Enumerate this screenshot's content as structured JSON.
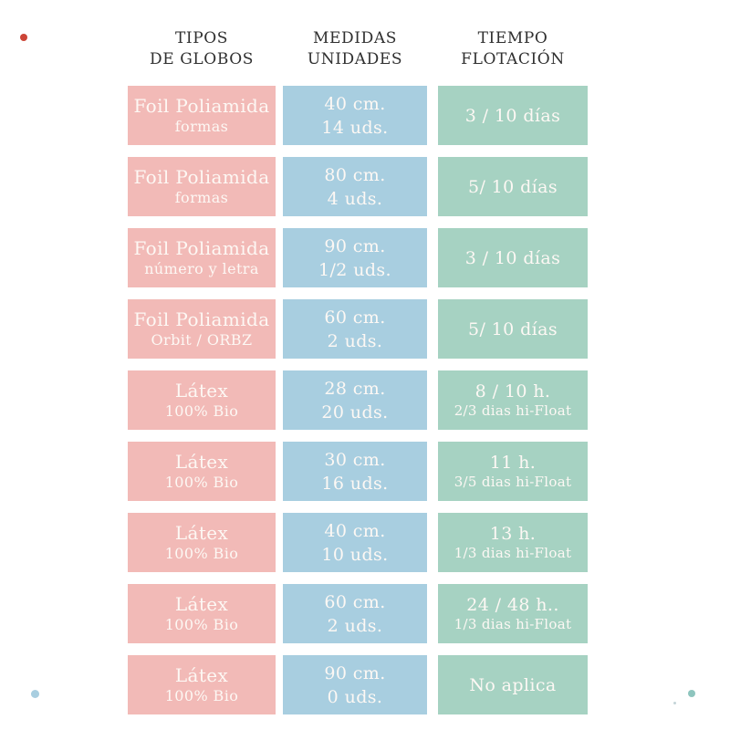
{
  "title": "Tabla de tipos de globos, medidas y tiempo de flotación",
  "colors": {
    "pink": "#f2bab7",
    "blue": "#a8cee0",
    "green": "#a6d2c2",
    "ink": "#2f2f2f",
    "celltext": "#fdf8f4",
    "dotred": "#cc4437",
    "dotblue": "#a8cee0",
    "dotteal": "#8ec5be",
    "dotspeck": "#c4d4d8"
  },
  "decorations": [
    {
      "name": "red-dot-top-left"
    },
    {
      "name": "blue-dot-bottom-left"
    },
    {
      "name": "teal-dot-bottom-right"
    },
    {
      "name": "speck-bottom-right"
    }
  ],
  "chart_data": {
    "type": "table",
    "columns": [
      {
        "header_line1": "TIPOS",
        "header_line2": "DE GLOBOS"
      },
      {
        "header_line1": "MEDIDAS",
        "header_line2": "UNIDADES"
      },
      {
        "header_line1": "TIEMPO",
        "header_line2": "FLOTACIÓN"
      }
    ],
    "rows": [
      {
        "tipo": "Foil Poliamida",
        "tipo_sub": "formas",
        "medida": "40 cm.",
        "unidades": "14 uds.",
        "tiempo": "3 / 10 días",
        "tiempo_sub": ""
      },
      {
        "tipo": "Foil Poliamida",
        "tipo_sub": "formas",
        "medida": "80 cm.",
        "unidades": "4 uds.",
        "tiempo": "5/ 10 días",
        "tiempo_sub": ""
      },
      {
        "tipo": "Foil Poliamida",
        "tipo_sub": "número y letra",
        "medida": "90 cm.",
        "unidades": "1/2 uds.",
        "tiempo": "3 / 10 días",
        "tiempo_sub": ""
      },
      {
        "tipo": "Foil Poliamida",
        "tipo_sub": "Orbit / ORBZ",
        "medida": "60 cm.",
        "unidades": "2 uds.",
        "tiempo": "5/ 10 días",
        "tiempo_sub": ""
      },
      {
        "tipo": "Látex",
        "tipo_sub": "100% Bio",
        "medida": "28 cm.",
        "unidades": "20 uds.",
        "tiempo": "8 / 10 h.",
        "tiempo_sub": "2/3 dias hi-Float"
      },
      {
        "tipo": "Látex",
        "tipo_sub": "100% Bio",
        "medida": "30 cm.",
        "unidades": "16 uds.",
        "tiempo": "11 h.",
        "tiempo_sub": "3/5 dias hi-Float"
      },
      {
        "tipo": "Látex",
        "tipo_sub": "100% Bio",
        "medida": "40 cm.",
        "unidades": "10 uds.",
        "tiempo": "13 h.",
        "tiempo_sub": "1/3 dias hi-Float"
      },
      {
        "tipo": "Látex",
        "tipo_sub": "100% Bio",
        "medida": "60 cm.",
        "unidades": "2 uds.",
        "tiempo": "24 / 48 h..",
        "tiempo_sub": "1/3 dias hi-Float"
      },
      {
        "tipo": "Látex",
        "tipo_sub": "100% Bio",
        "medida": "90 cm.",
        "unidades": "0 uds.",
        "tiempo": "No aplica",
        "tiempo_sub": ""
      }
    ]
  }
}
